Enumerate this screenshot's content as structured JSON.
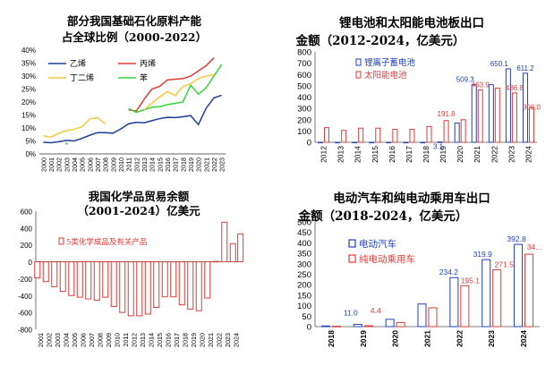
{
  "chart_data": [
    {
      "id": "p1",
      "type": "line",
      "title_lines": [
        "部分我国基础石化原料产能",
        "占全球比例（2000-2022）"
      ],
      "x": [
        "2000",
        "2001",
        "2002",
        "2003",
        "2004",
        "2005",
        "2006",
        "2007",
        "2008",
        "2009",
        "2010",
        "2011",
        "2012",
        "2013",
        "2014",
        "2015",
        "2016",
        "2017",
        "2018",
        "2019",
        "2020",
        "2021",
        "2022",
        "2023"
      ],
      "ylim": [
        0,
        40
      ],
      "yticks": [
        "0%",
        "5%",
        "10%",
        "15%",
        "20%",
        "25%",
        "30%",
        "35%",
        "40%"
      ],
      "legend_position": "top-left",
      "series": [
        {
          "name": "乙烯",
          "color": "#1f3d99",
          "values": [
            4.5,
            4.3,
            4.7,
            5.2,
            5.0,
            6.0,
            7.2,
            8.2,
            8.2,
            8.0,
            9.6,
            11.6,
            12.2,
            12.0,
            12.8,
            13.6,
            14.1,
            14.0,
            14.3,
            14.8,
            11.3,
            17.6,
            21.6,
            22.6
          ]
        },
        {
          "name": "丙烯",
          "color": "#e53935",
          "values": [
            null,
            null,
            null,
            null,
            null,
            null,
            null,
            null,
            null,
            null,
            null,
            17.0,
            16.5,
            21.0,
            25.0,
            26.0,
            28.5,
            28.8,
            29.0,
            30.0,
            32.0,
            34.0,
            37.0,
            null
          ]
        },
        {
          "name": "丁二烯",
          "color": "#f5c93a",
          "values": [
            7.0,
            6.5,
            8.0,
            9.0,
            9.5,
            10.5,
            13.5,
            14.0,
            11.5,
            null,
            null,
            null,
            null,
            null,
            null,
            null,
            null,
            null,
            null,
            null,
            null,
            null,
            null,
            null
          ]
        },
        {
          "name": "苯",
          "color": "#33d63a",
          "values": [
            null,
            null,
            null,
            4.0,
            null,
            null,
            null,
            null,
            null,
            null,
            null,
            17.5,
            16.0,
            17.0,
            18.0,
            18.2,
            19.0,
            19.5,
            20.0,
            26.5,
            23.0,
            25.5,
            30.0,
            34.5
          ]
        }
      ],
      "extra_series": {
        "color": "#f5c93a",
        "values": [
          null,
          null,
          null,
          null,
          null,
          null,
          null,
          null,
          null,
          null,
          null,
          null,
          null,
          17.0,
          19.5,
          22.0,
          24.0,
          22.5,
          26.0,
          27.0,
          29.0,
          30.0,
          30.5,
          null
        ]
      }
    },
    {
      "id": "p2",
      "type": "bar",
      "title_lines": [
        "锂电池和太阳能电池板出口",
        "金额（2012-2024，亿美元）"
      ],
      "categories": [
        "2012",
        "2013",
        "2014",
        "2015",
        "2016",
        "2017",
        "2018",
        "2019",
        "2020",
        "2021",
        "2022",
        "2023",
        "2024"
      ],
      "ylim": [
        0,
        800
      ],
      "yticks": [
        "0",
        "100",
        "200",
        "300",
        "400",
        "500",
        "600",
        "700",
        "800"
      ],
      "legend_position": "top-left",
      "series": [
        {
          "name": "锂离子蓄电池",
          "color": "#1f3fbf",
          "values": [
            0,
            0,
            0,
            0,
            0,
            0,
            0,
            3.1,
            170,
            509.3,
            510,
            650.1,
            611.2
          ]
        },
        {
          "name": "太阳能电池",
          "color": "#e53935",
          "values": [
            130,
            105,
            125,
            125,
            115,
            115,
            140,
            191.8,
            200,
            463.9,
            480,
            436.8,
            306.0
          ]
        }
      ],
      "data_labels": [
        {
          "text": "3.1",
          "series": 0,
          "index": 7,
          "color": "#1f3fbf"
        },
        {
          "text": "509.3",
          "series": 0,
          "index": 9,
          "color": "#1f3fbf"
        },
        {
          "text": "650.1",
          "series": 0,
          "index": 11,
          "color": "#1f3fbf"
        },
        {
          "text": "611.2",
          "series": 0,
          "index": 12,
          "color": "#1f3fbf"
        },
        {
          "text": "191.8",
          "series": 1,
          "index": 7,
          "color": "#e53935"
        },
        {
          "text": "463.9",
          "series": 1,
          "index": 9,
          "color": "#e53935"
        },
        {
          "text": "436.8",
          "series": 1,
          "index": 11,
          "color": "#e53935"
        },
        {
          "text": "306.0",
          "series": 1,
          "index": 12,
          "color": "#e53935"
        }
      ]
    },
    {
      "id": "p3",
      "type": "bar",
      "title_lines": [
        "我国化学品贸易余额",
        "（2001-2024）亿美元"
      ],
      "categories": [
        "2001",
        "2002",
        "2003",
        "2004",
        "2005",
        "2006",
        "2007",
        "2008",
        "2009",
        "2010",
        "2011",
        "2012",
        "2013",
        "2014",
        "2015",
        "2016",
        "2017",
        "2018",
        "2019",
        "2020",
        "2021",
        "2022",
        "2023",
        "2024"
      ],
      "ylim": [
        -800,
        600
      ],
      "yticks": [
        "-800",
        "-600",
        "-400",
        "-200",
        "0",
        "200",
        "400",
        "600"
      ],
      "legend_position": "top-center",
      "series": [
        {
          "name": "5类化学成品及有关产品",
          "color": "#e53935",
          "values": [
            -190,
            -235,
            -295,
            -350,
            -400,
            -420,
            -440,
            -455,
            -420,
            -530,
            -600,
            -640,
            -640,
            -620,
            -540,
            -415,
            -415,
            -510,
            -560,
            -580,
            -430,
            5,
            470,
            215
          ]
        },
        {
          "name": "",
          "color": "#e53935",
          "values": [
            null,
            null,
            null,
            null,
            null,
            null,
            null,
            null,
            null,
            null,
            null,
            null,
            null,
            null,
            null,
            null,
            null,
            null,
            null,
            null,
            null,
            null,
            null,
            330
          ]
        }
      ]
    },
    {
      "id": "p4",
      "type": "bar",
      "title_lines": [
        "电动汽车和纯电动乘用车出口",
        "金额（2018-2024，亿美元）"
      ],
      "categories": [
        "2018",
        "2019",
        "2020",
        "2021",
        "2022",
        "2023",
        "2024"
      ],
      "ylim": [
        0,
        500
      ],
      "yticks": [
        "0",
        "50",
        "100",
        "150",
        "200",
        "250",
        "300",
        "350",
        "400",
        "450",
        "500"
      ],
      "legend_position": "top-left",
      "series": [
        {
          "name": "电动汽车",
          "color": "#1f3fbf",
          "values": [
            3,
            11.0,
            35,
            108,
            234.2,
            319.9,
            392.8
          ]
        },
        {
          "name": "纯电动乘用车",
          "color": "#e53935",
          "values": [
            2,
            4.4,
            20,
            90,
            195.1,
            271.5,
            346
          ]
        }
      ],
      "data_labels": [
        {
          "text": "11.0",
          "series": 0,
          "index": 1,
          "color": "#1f3fbf"
        },
        {
          "text": "234.2",
          "series": 0,
          "index": 4,
          "color": "#1f3fbf"
        },
        {
          "text": "319.9",
          "series": 0,
          "index": 5,
          "color": "#1f3fbf"
        },
        {
          "text": "392.8",
          "series": 0,
          "index": 6,
          "color": "#1f3fbf"
        },
        {
          "text": "4.4",
          "series": 1,
          "index": 1,
          "color": "#e53935"
        },
        {
          "text": "195.1",
          "series": 1,
          "index": 4,
          "color": "#e53935"
        },
        {
          "text": "271.5",
          "series": 1,
          "index": 5,
          "color": "#e53935"
        },
        {
          "text": "34...",
          "series": 1,
          "index": 6,
          "color": "#e53935"
        }
      ]
    }
  ]
}
